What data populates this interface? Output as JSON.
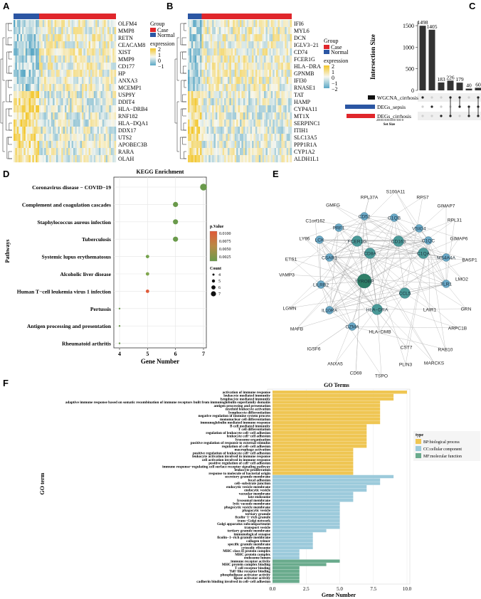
{
  "panels": {
    "A": {
      "label": "A"
    },
    "B": {
      "label": "B"
    },
    "C": {
      "label": "C"
    },
    "D": {
      "label": "D"
    },
    "E": {
      "label": "E"
    },
    "F": {
      "label": "F"
    }
  },
  "heatmap_legend": {
    "group_title": "Group",
    "case": "Case",
    "normal": "Normal",
    "expr_title_1": "",
    "expr_title_2": "expression",
    "ticks_A": [
      "2",
      "1",
      "0",
      "−1"
    ],
    "ticks_B": [
      "2",
      "1",
      "0",
      "−1",
      "−2"
    ],
    "colors": {
      "case": "#e0262b",
      "normal": "#2b56a3",
      "high": "#f3c629",
      "mid": "#f6f7f0",
      "low": "#5ba8c6"
    }
  },
  "chart_data": [
    {
      "id": "A",
      "type": "heatmap",
      "column_annotation": "Group",
      "normal_fraction": 0.25,
      "genes": [
        "OLFM4",
        "MMP8",
        "RETN",
        "CEACAM8",
        "XIST",
        "MMP9",
        "CD177",
        "HP",
        "ANXA3",
        "MCEMP1",
        "USP9Y",
        "DDIT4",
        "HLA−DRB4",
        "RNF182",
        "HLA−DQA1",
        "DDX17",
        "UTS2",
        "APOBEC3B",
        "RARA",
        "OLAH"
      ]
    },
    {
      "id": "B",
      "type": "heatmap",
      "column_annotation": "Group",
      "normal_fraction": 0.13,
      "genes": [
        "IFI6",
        "MYL6",
        "DCN",
        "IGLV3−21",
        "CD74",
        "FCER1G",
        "HLA−DRA",
        "GPNMB",
        "IFI30",
        "RNASE1",
        "TAT",
        "HAMP",
        "CYP4A11",
        "MT1X",
        "SERPINC1",
        "ITIH1",
        "SLC13A5",
        "PPP1R1A",
        "CYP1A2",
        "ALDH1L1"
      ]
    },
    {
      "id": "C",
      "type": "bar",
      "ylabel": "Intersection Size",
      "ylim": [
        0,
        1600
      ],
      "yticks": [
        "0",
        "500",
        "1000",
        "1500"
      ],
      "values": [
        1498,
        1405,
        183,
        226,
        179,
        40,
        60
      ],
      "labels": [
        "1498",
        "1405",
        "183",
        "226",
        "179",
        "40",
        "60"
      ],
      "sets": [
        "WGCNA_cirrhosis",
        "DEGs_sepsis",
        "DEGs_cirrhosis"
      ],
      "set_colors": [
        "#111111",
        "#2b56a3",
        "#e0262b"
      ],
      "set_size_label": "Set Size",
      "set_size_ticks": "200015001000 500  0"
    },
    {
      "id": "D",
      "type": "scatter",
      "title": "KEGG Enrichment",
      "xlabel": "Gene Number",
      "ylabel": "Pathways",
      "xlim": [
        4,
        7
      ],
      "xticks": [
        "4",
        "5",
        "6",
        "7"
      ],
      "pathways": [
        "Coronavirus disease − COVID−19",
        "Complement and coagulation cascades",
        "Staphylococcus aureus infection",
        "Tuberculosis",
        "Systemic lupus erythematosus",
        "Alcoholic liver disease",
        "Human T−cell leukemia virus 1 infection",
        "Pertussis",
        "Antigen processing and presentation",
        "Rheumatoid arthritis"
      ],
      "counts": [
        7,
        6,
        6,
        6,
        5,
        5,
        5,
        4,
        4,
        4
      ],
      "pvalue_color": [
        "#6a9a4b",
        "#6a9a4b",
        "#6a9a4b",
        "#6a9a4b",
        "#74a24c",
        "#80a64d",
        "#e05a38",
        "#6a9a4b",
        "#6a9a4b",
        "#6a9a4b"
      ],
      "legend_pvalue_title": "p.Value",
      "legend_pvalue_ticks": [
        "0.0100",
        "0.0075",
        "0.0050",
        "0.0025"
      ],
      "legend_count_title": "Count",
      "legend_count_ticks": [
        "4",
        "5",
        "6",
        "7"
      ]
    },
    {
      "id": "F",
      "type": "bar",
      "title": "GO Terms",
      "xlabel": "Gene Number",
      "ylabel": "GO term",
      "xlim": [
        0,
        10.3
      ],
      "xticks": [
        "0.0",
        "2.5",
        "5.0",
        "7.5",
        "10.0"
      ],
      "legend_title": "type",
      "legend": [
        "BP:biological process",
        "CC:cellular component",
        "MF:molecular function"
      ],
      "colors": {
        "BP": "#efc653",
        "CC": "#9ccadb",
        "MF": "#6aab8d"
      },
      "terms": [
        {
          "t": "activation of immune response",
          "v": 10,
          "c": "BP"
        },
        {
          "t": "leukocyte mediated immunity",
          "v": 9,
          "c": "BP"
        },
        {
          "t": "lymphocyte mediated immunity",
          "v": 9,
          "c": "BP"
        },
        {
          "t": "adaptive immune response based on somatic recombination of immune receptors built from immunoglobulin superfamily domains",
          "v": 8,
          "c": "BP"
        },
        {
          "t": "antigen processing and presentation",
          "v": 8,
          "c": "BP"
        },
        {
          "t": "myeloid leukocyte activation",
          "v": 8,
          "c": "BP"
        },
        {
          "t": "lymphocyte differentiation",
          "v": 8,
          "c": "BP"
        },
        {
          "t": "negative regulation of immune system process",
          "v": 8,
          "c": "BP"
        },
        {
          "t": "mononuclear cell differentiation",
          "v": 8,
          "c": "BP"
        },
        {
          "t": "immunoglobulin mediated immune response",
          "v": 8,
          "c": "BP"
        },
        {
          "t": "B cell mediated immunity",
          "v": 7,
          "c": "BP"
        },
        {
          "t": "T cell differentiation",
          "v": 7,
          "c": "BP"
        },
        {
          "t": "regulation of leukocyte cell−cell adhesion",
          "v": 7,
          "c": "BP"
        },
        {
          "t": "leukocyte cell−cell adhesion",
          "v": 7,
          "c": "BP"
        },
        {
          "t": "lysosome organization",
          "v": 7,
          "c": "BP"
        },
        {
          "t": "positive regulation of response to external stimulus",
          "v": 7,
          "c": "BP"
        },
        {
          "t": "regulation of cell−cell adhesion",
          "v": 7,
          "c": "BP"
        },
        {
          "t": "macrophage activation",
          "v": 6,
          "c": "BP"
        },
        {
          "t": "positive regulation of leukocyte cell−cell adhesion",
          "v": 6,
          "c": "BP"
        },
        {
          "t": "leukocyte activation involved in immune response",
          "v": 6,
          "c": "BP"
        },
        {
          "t": "cell activation involved in immune response",
          "v": 6,
          "c": "BP"
        },
        {
          "t": "positive regulation of cell−cell adhesion",
          "v": 6,
          "c": "BP"
        },
        {
          "t": "immune response−regulating cell surface receptor signaling pathway",
          "v": 6,
          "c": "BP"
        },
        {
          "t": "leukocyte proliferation",
          "v": 6,
          "c": "BP"
        },
        {
          "t": "response to molecule of bacterial origin",
          "v": 6,
          "c": "BP"
        },
        {
          "t": "secretory granule membrane",
          "v": 9,
          "c": "CC"
        },
        {
          "t": "focal adhesion",
          "v": 8,
          "c": "CC"
        },
        {
          "t": "cell−substrate junction",
          "v": 8,
          "c": "CC"
        },
        {
          "t": "endocytic vesicle membrane",
          "v": 7,
          "c": "CC"
        },
        {
          "t": "endocytic vesicle",
          "v": 7,
          "c": "CC"
        },
        {
          "t": "vacuolar membrane",
          "v": 6,
          "c": "CC"
        },
        {
          "t": "late endosome",
          "v": 6,
          "c": "CC"
        },
        {
          "t": "lysosomal membrane",
          "v": 6,
          "c": "CC"
        },
        {
          "t": "lytic vacuole membrane",
          "v": 5,
          "c": "CC"
        },
        {
          "t": "phagocytic vesicle membrane",
          "v": 5,
          "c": "CC"
        },
        {
          "t": "phagocytic vesicle",
          "v": 5,
          "c": "CC"
        },
        {
          "t": "tertiary granule",
          "v": 5,
          "c": "CC"
        },
        {
          "t": "ficolin−1−rich granule",
          "v": 5,
          "c": "CC"
        },
        {
          "t": "trans−Golgi network",
          "v": 5,
          "c": "CC"
        },
        {
          "t": "Golgi apparatus subcompartment",
          "v": 5,
          "c": "CC"
        },
        {
          "t": "transport vesicle",
          "v": 5,
          "c": "CC"
        },
        {
          "t": "tertiary granule membrane",
          "v": 4,
          "c": "CC"
        },
        {
          "t": "immunological synapse",
          "v": 3,
          "c": "CC"
        },
        {
          "t": "ficolin−1−rich granule membrane",
          "v": 3,
          "c": "CC"
        },
        {
          "t": "collagen trimer",
          "v": 3,
          "c": "CC"
        },
        {
          "t": "specific granule membrane",
          "v": 3,
          "c": "CC"
        },
        {
          "t": "cytosolic ribosome",
          "v": 3,
          "c": "CC"
        },
        {
          "t": "MHC class II protein complex",
          "v": 2,
          "c": "CC"
        },
        {
          "t": "MHC protein complex",
          "v": 2,
          "c": "CC"
        },
        {
          "t": "endosome lumen",
          "v": 2,
          "c": "CC"
        },
        {
          "t": "immune receptor activity",
          "v": 5,
          "c": "MF"
        },
        {
          "t": "MHC protein complex binding",
          "v": 4,
          "c": "MF"
        },
        {
          "t": "T cell receptor binding",
          "v": 2,
          "c": "MF"
        },
        {
          "t": "Toll−like receptor binding",
          "v": 2,
          "c": "MF"
        },
        {
          "t": "phospholipase activator activity",
          "v": 2,
          "c": "MF"
        },
        {
          "t": "lipase activator activity",
          "v": 2,
          "c": "MF"
        },
        {
          "t": "cadherin binding involved in cell−cell adhesion",
          "v": 2,
          "c": "MF"
        }
      ]
    }
  ],
  "network": {
    "nodes": [
      {
        "id": "S100A11",
        "hub": 0
      },
      {
        "id": "RPL37A",
        "hub": 0
      },
      {
        "id": "RPS7",
        "hub": 0
      },
      {
        "id": "GMFG",
        "hub": 0
      },
      {
        "id": "GIMAP7",
        "hub": 0
      },
      {
        "id": "RPL31",
        "hub": 0
      },
      {
        "id": "CD52",
        "hub": 1
      },
      {
        "id": "C1QB",
        "hub": 1
      },
      {
        "id": "VSIG4",
        "hub": 1
      },
      {
        "id": "C1orf162",
        "hub": 0
      },
      {
        "id": "PRF1",
        "hub": 1
      },
      {
        "id": "GIMAP6",
        "hub": 0
      },
      {
        "id": "LY96",
        "hub": 0
      },
      {
        "id": "LCK",
        "hub": 1
      },
      {
        "id": "FCER1G",
        "hub": 2
      },
      {
        "id": "CD163",
        "hub": 2
      },
      {
        "id": "C1QC",
        "hub": 1
      },
      {
        "id": "BASP1",
        "hub": 0
      },
      {
        "id": "ETS1",
        "hub": 0
      },
      {
        "id": "CSAR1",
        "hub": 1
      },
      {
        "id": "CD8A",
        "hub": 2
      },
      {
        "id": "C1QA",
        "hub": 2
      },
      {
        "id": "MS4A4A",
        "hub": 1
      },
      {
        "id": "VAMP3",
        "hub": 0
      },
      {
        "id": "LMO2",
        "hub": 0
      },
      {
        "id": "LILRB2",
        "hub": 1
      },
      {
        "id": "TYROBP",
        "hub": 3
      },
      {
        "id": "TLR1",
        "hub": 1
      },
      {
        "id": "LGMN",
        "hub": 0
      },
      {
        "id": "CCL5",
        "hub": 2
      },
      {
        "id": "GRN",
        "hub": 0
      },
      {
        "id": "MAFB",
        "hub": 0
      },
      {
        "id": "IL10RA",
        "hub": 1
      },
      {
        "id": "HLA−DRA",
        "hub": 2
      },
      {
        "id": "LAIR1",
        "hub": 0
      },
      {
        "id": "ARPC1B",
        "hub": 0
      },
      {
        "id": "IGSF6",
        "hub": 0
      },
      {
        "id": "GZMA",
        "hub": 1
      },
      {
        "id": "HLA−DMB",
        "hub": 0
      },
      {
        "id": "CST7",
        "hub": 0
      },
      {
        "id": "RAB10",
        "hub": 0
      },
      {
        "id": "ANXA5",
        "hub": 0
      },
      {
        "id": "CD69",
        "hub": 0
      },
      {
        "id": "TSPO",
        "hub": 0
      },
      {
        "id": "PLIN3",
        "hub": 0
      },
      {
        "id": "MARCKS",
        "hub": 0
      }
    ]
  }
}
